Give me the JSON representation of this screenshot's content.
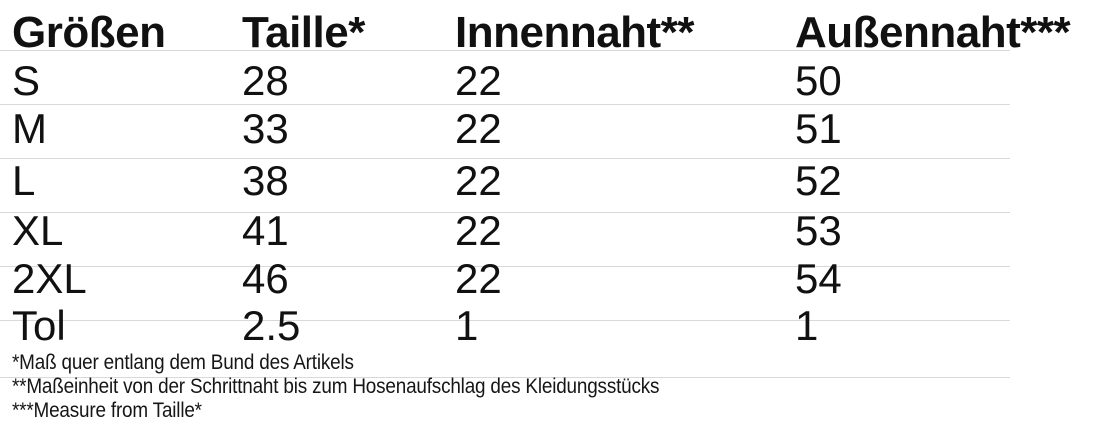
{
  "chart_data": {
    "type": "table",
    "columns": [
      "Größen",
      "Taille*",
      "Innennaht**",
      "Außennaht***"
    ],
    "rows": [
      [
        "S",
        "28",
        "22",
        "50"
      ],
      [
        "M",
        "33",
        "22",
        "51"
      ],
      [
        "L",
        "38",
        "22",
        "52"
      ],
      [
        "XL",
        "41",
        "22",
        "53"
      ],
      [
        "2XL",
        "46",
        "22",
        "54"
      ],
      [
        "Tol",
        "2.5",
        "1",
        "1"
      ]
    ],
    "footnotes": [
      "*Maß quer entlang dem Bund des Artikels",
      "**Maßeinheit von der Schrittnaht bis zum Hosenaufschlag des Kleidungsstücks",
      "***Measure from Taille*"
    ],
    "layout": {
      "grid": "horizontal-lines-only",
      "legend": "none"
    }
  },
  "colors": {
    "background": "#ffffff",
    "text": "#111111",
    "grid_line": "#d9d9d9"
  }
}
